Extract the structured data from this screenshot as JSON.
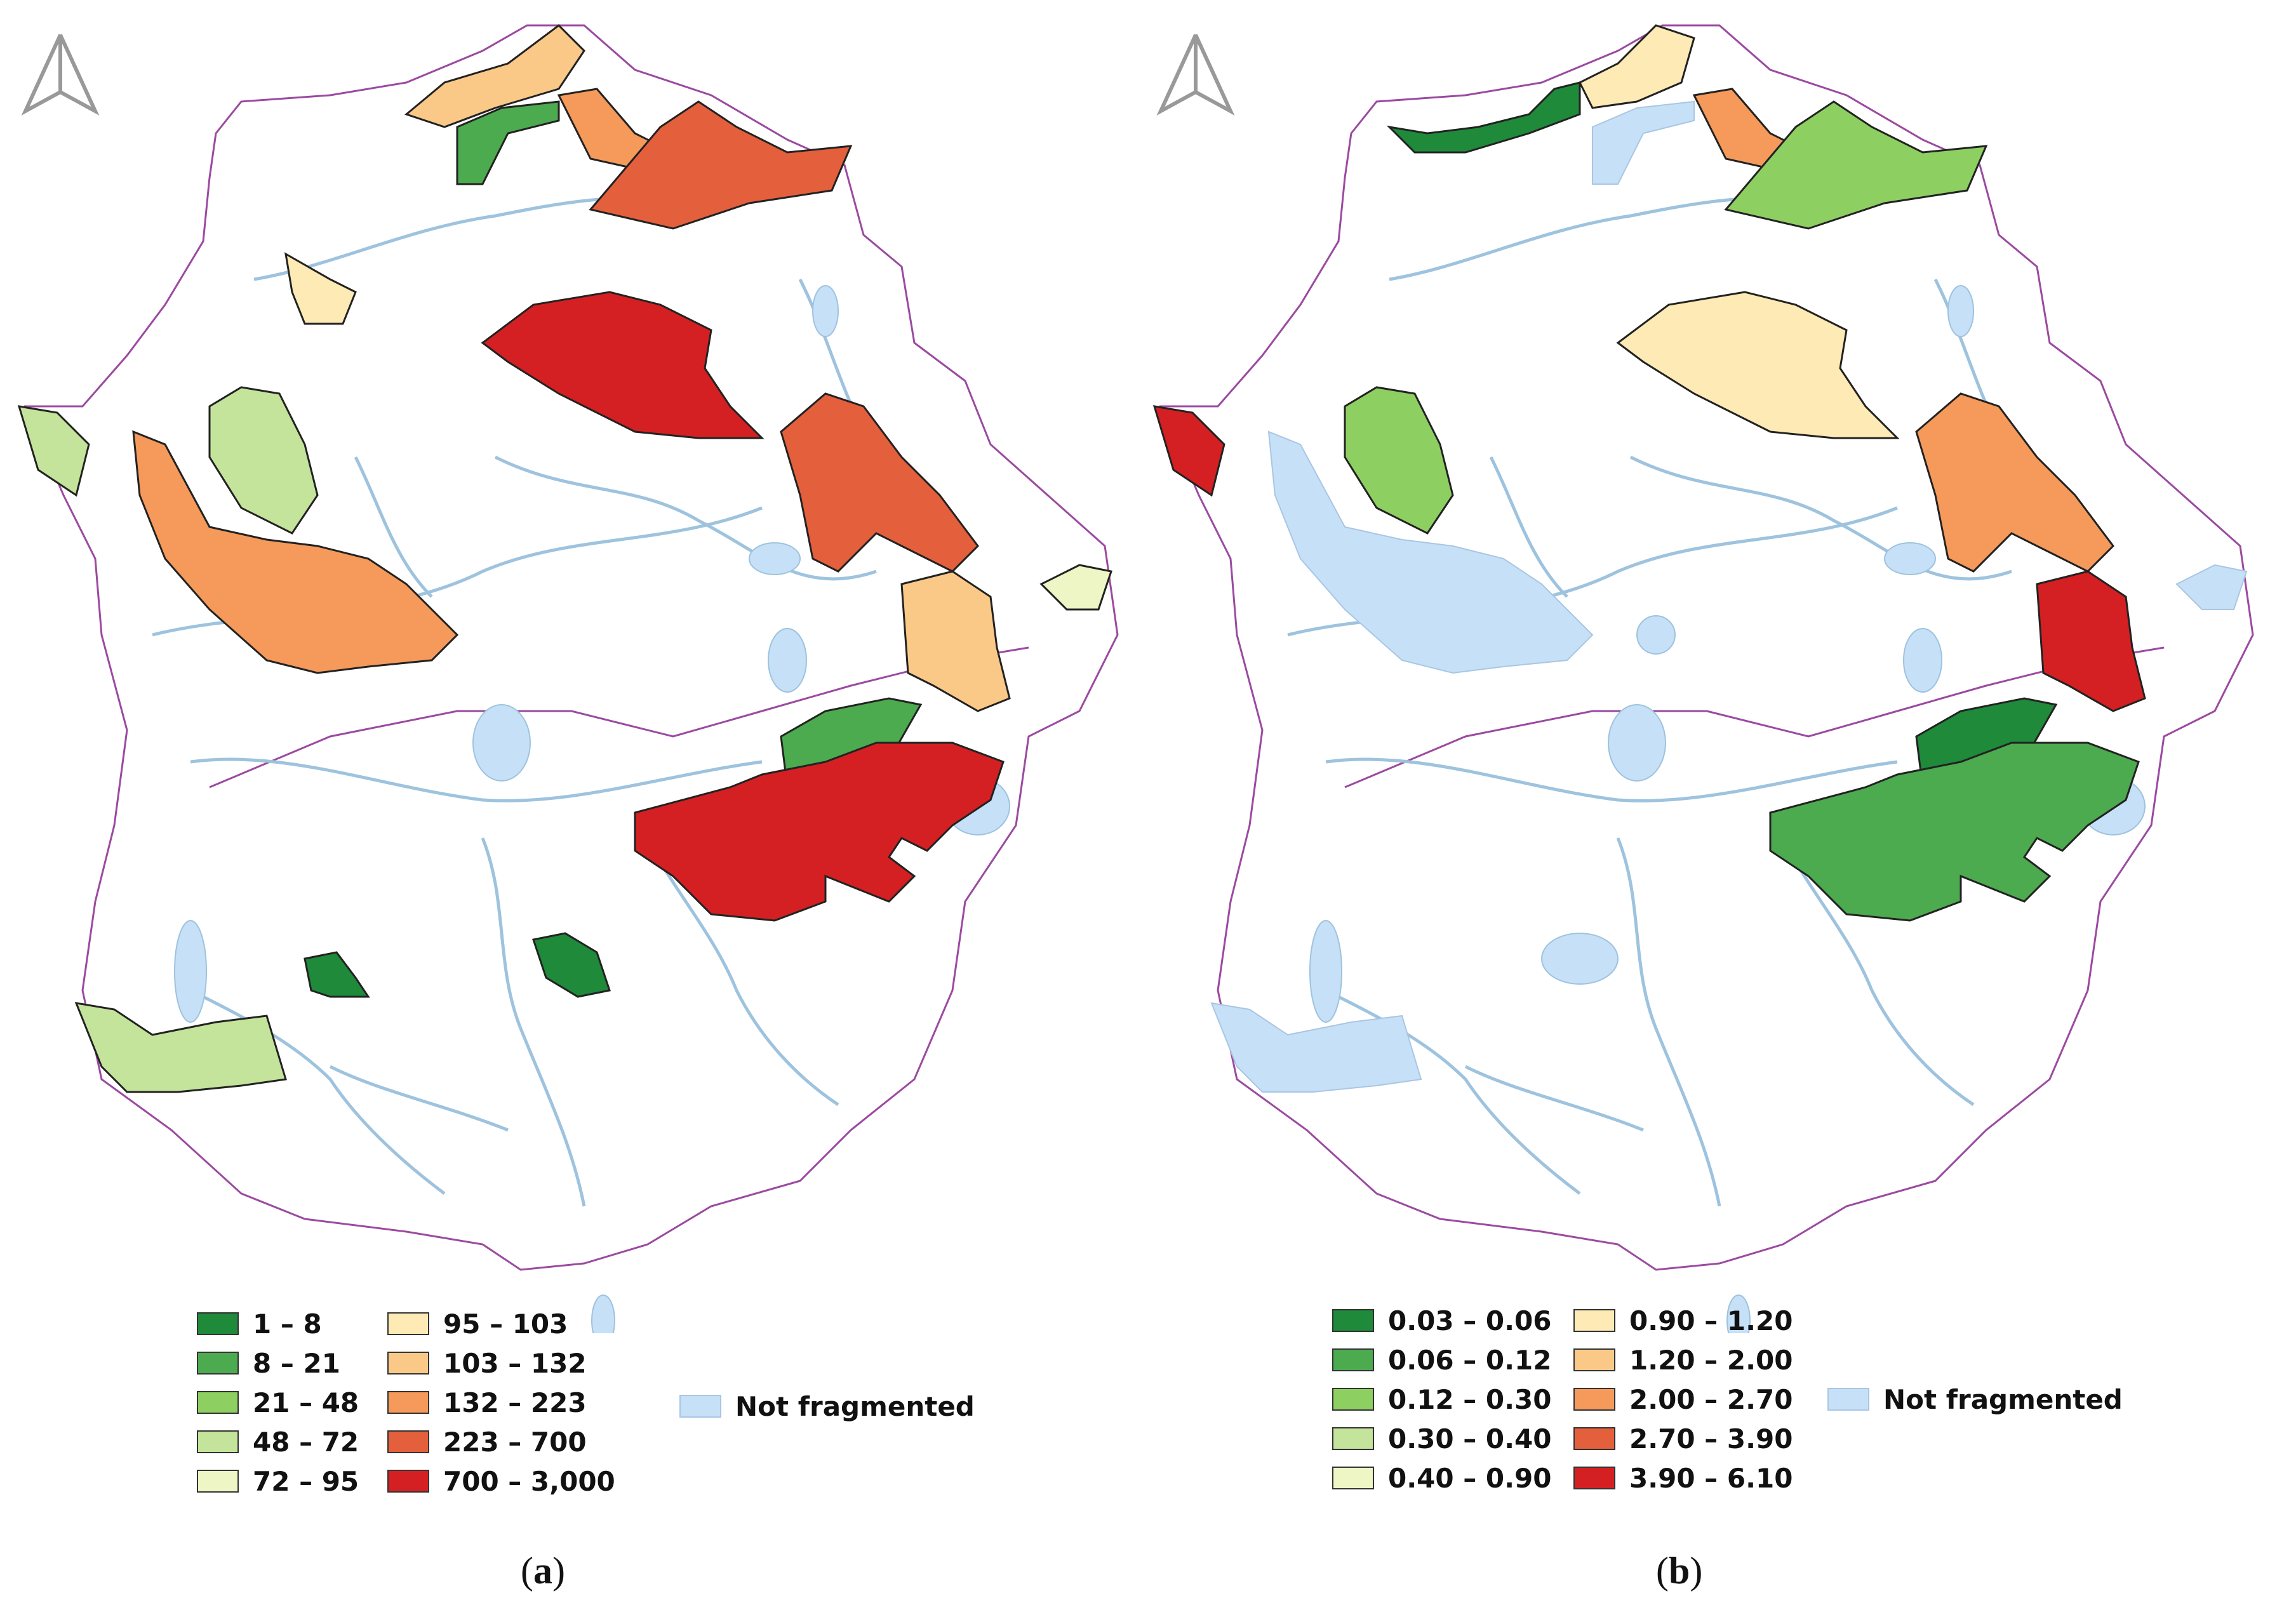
{
  "panels": [
    {
      "id": "a",
      "caption_open": "(",
      "caption_letter": "a",
      "caption_close": ")",
      "legend": [
        {
          "label": "1 – 8",
          "color": "#1e8a3a"
        },
        {
          "label": "8 – 21",
          "color": "#4caa4f"
        },
        {
          "label": "21 – 48",
          "color": "#8ecf62"
        },
        {
          "label": "48 – 72",
          "color": "#c3e49a"
        },
        {
          "label": "72 – 95",
          "color": "#edf6c4"
        },
        {
          "label": "95 – 103",
          "color": "#fdeab5"
        },
        {
          "label": "103 – 132",
          "color": "#fbc987"
        },
        {
          "label": "132 – 223",
          "color": "#f59a5a"
        },
        {
          "label": "223 – 700",
          "color": "#e45f3c"
        },
        {
          "label": "700 – 3,000",
          "color": "#d42022"
        }
      ],
      "not_fragmented": {
        "label": "Not fragmented",
        "color": "#c6e0f7"
      }
    },
    {
      "id": "b",
      "caption_open": "(",
      "caption_letter": "b",
      "caption_close": ")",
      "legend": [
        {
          "label": "0.03 – 0.06",
          "color": "#1e8a3a"
        },
        {
          "label": "0.06 – 0.12",
          "color": "#4caa4f"
        },
        {
          "label": "0.12 – 0.30",
          "color": "#8ecf62"
        },
        {
          "label": "0.30 – 0.40",
          "color": "#c3e49a"
        },
        {
          "label": "0.40 – 0.90",
          "color": "#edf6c4"
        },
        {
          "label": "0.90 – 1.20",
          "color": "#fdeab5"
        },
        {
          "label": "1.20 – 2.00",
          "color": "#fbc987"
        },
        {
          "label": "2.00 – 2.70",
          "color": "#f59a5a"
        },
        {
          "label": "2.70 – 3.90",
          "color": "#e45f3c"
        },
        {
          "label": "3.90 – 6.10",
          "color": "#d42022"
        }
      ],
      "not_fragmented": {
        "label": "Not fragmented",
        "color": "#c6e0f7"
      }
    }
  ],
  "map_colors": {
    "boundary": "#9b4aa0",
    "river": "#9ec3de",
    "reservoir": "#c6e0f7",
    "outline": "#222222"
  }
}
